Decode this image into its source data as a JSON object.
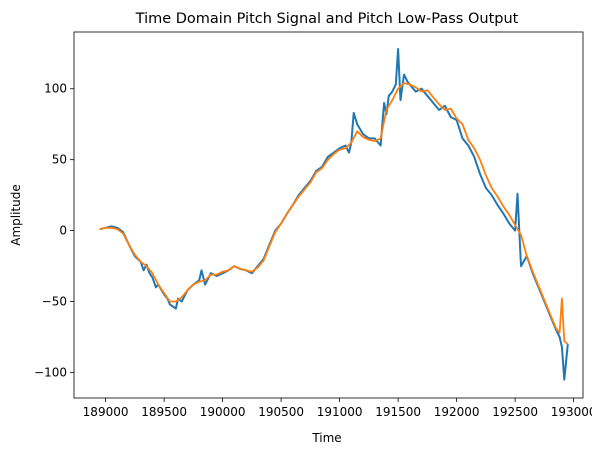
{
  "chart_data": {
    "type": "line",
    "title": "Time Domain Pitch Signal and Pitch Low-Pass Output",
    "xlabel": "Time",
    "ylabel": "Amplitude",
    "xlim": [
      188730,
      193080
    ],
    "ylim": [
      -118,
      140
    ],
    "xticks": [
      189000,
      189500,
      190000,
      190500,
      191000,
      191500,
      192000,
      192500,
      193000
    ],
    "yticks": [
      -100,
      -50,
      0,
      50,
      100
    ],
    "grid": false,
    "legend": "none",
    "series": [
      {
        "color": "#1f77b4",
        "x": [
          188950,
          189000,
          189050,
          189100,
          189150,
          189200,
          189250,
          189300,
          189325,
          189350,
          189375,
          189400,
          189430,
          189450,
          189500,
          189530,
          189550,
          189600,
          189620,
          189650,
          189700,
          189750,
          189800,
          189820,
          189850,
          189900,
          189950,
          190000,
          190050,
          190100,
          190150,
          190200,
          190250,
          190300,
          190350,
          190400,
          190450,
          190500,
          190550,
          190600,
          190650,
          190700,
          190750,
          190800,
          190850,
          190900,
          190950,
          191000,
          191050,
          191080,
          191100,
          191120,
          191150,
          191200,
          191250,
          191300,
          191350,
          191380,
          191400,
          191420,
          191450,
          191480,
          191500,
          191520,
          191550,
          191580,
          191600,
          191650,
          191700,
          191750,
          191800,
          191850,
          191900,
          191950,
          192000,
          192050,
          192100,
          192150,
          192200,
          192250,
          192300,
          192350,
          192400,
          192450,
          192500,
          192520,
          192550,
          192600,
          192650,
          192700,
          192750,
          192800,
          192850,
          192880,
          192900,
          192920,
          192950
        ],
        "values": [
          1,
          2,
          3,
          2,
          -1,
          -10,
          -18,
          -22,
          -28,
          -24,
          -30,
          -33,
          -40,
          -38,
          -45,
          -48,
          -52,
          -55,
          -48,
          -50,
          -42,
          -38,
          -35,
          -28,
          -38,
          -30,
          -32,
          -30,
          -28,
          -25,
          -27,
          -28,
          -30,
          -25,
          -20,
          -10,
          0,
          5,
          12,
          18,
          25,
          30,
          35,
          42,
          45,
          52,
          55,
          58,
          60,
          55,
          62,
          83,
          75,
          68,
          65,
          65,
          60,
          90,
          82,
          95,
          98,
          103,
          128,
          92,
          110,
          105,
          103,
          98,
          100,
          95,
          90,
          85,
          88,
          80,
          78,
          65,
          60,
          52,
          40,
          30,
          25,
          18,
          12,
          5,
          0,
          26,
          -25,
          -18,
          -30,
          -40,
          -50,
          -60,
          -70,
          -75,
          -82,
          -105,
          -80
        ]
      },
      {
        "color": "#ff7f0e",
        "x": [
          188950,
          189000,
          189050,
          189100,
          189150,
          189200,
          189250,
          189300,
          189350,
          189400,
          189450,
          189500,
          189550,
          189600,
          189650,
          189700,
          189750,
          189800,
          189850,
          189900,
          189950,
          190000,
          190050,
          190100,
          190150,
          190200,
          190250,
          190300,
          190350,
          190400,
          190450,
          190500,
          190550,
          190600,
          190650,
          190700,
          190750,
          190800,
          190850,
          190900,
          190950,
          191000,
          191050,
          191100,
          191150,
          191200,
          191250,
          191300,
          191350,
          191400,
          191450,
          191500,
          191550,
          191600,
          191650,
          191700,
          191750,
          191800,
          191850,
          191900,
          191950,
          192000,
          192050,
          192100,
          192150,
          192200,
          192250,
          192300,
          192350,
          192400,
          192450,
          192500,
          192550,
          192600,
          192650,
          192700,
          192750,
          192800,
          192850,
          192880,
          192900,
          192920,
          192950
        ],
        "values": [
          1,
          2,
          2,
          1,
          -2,
          -10,
          -17,
          -22,
          -25,
          -30,
          -38,
          -44,
          -50,
          -50,
          -47,
          -42,
          -38,
          -36,
          -35,
          -31,
          -31,
          -29,
          -28,
          -25,
          -27,
          -28,
          -29,
          -26,
          -21,
          -11,
          -1,
          5,
          12,
          18,
          24,
          29,
          34,
          41,
          44,
          50,
          54,
          57,
          58,
          62,
          70,
          66,
          64,
          63,
          65,
          85,
          92,
          100,
          104,
          103,
          101,
          98,
          99,
          94,
          89,
          85,
          86,
          79,
          75,
          64,
          58,
          50,
          39,
          30,
          24,
          17,
          11,
          4,
          -3,
          -18,
          -29,
          -39,
          -49,
          -59,
          -69,
          -72,
          -48,
          -78,
          -80
        ]
      }
    ]
  }
}
